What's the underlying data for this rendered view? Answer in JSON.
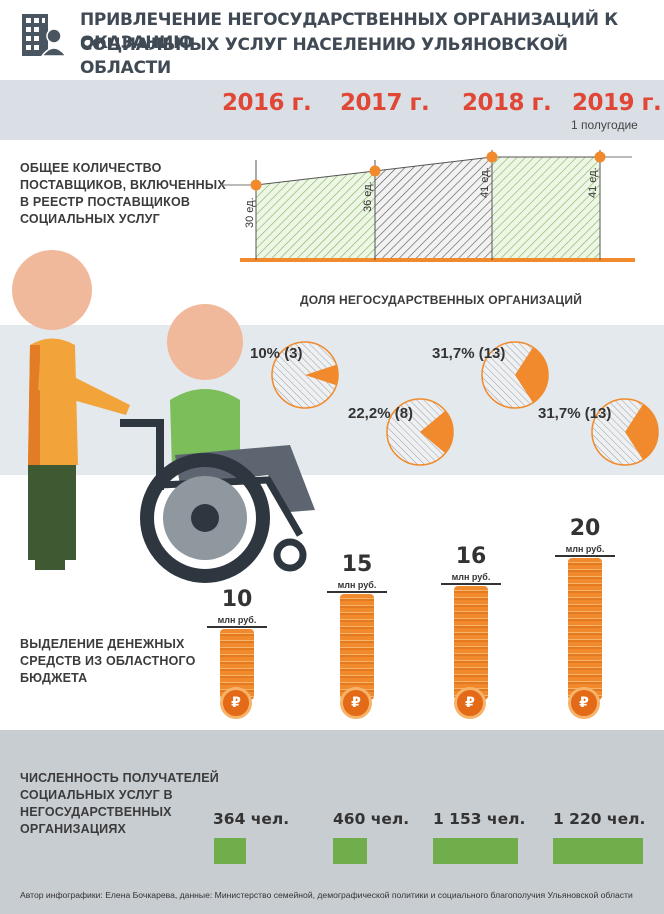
{
  "header": {
    "title_line1": "ПРИВЛЕЧЕНИЕ НЕГОСУДАРСТВЕННЫХ ОРГАНИЗАЦИЙ К ОКАЗАНИЮ",
    "title_line2": "СОЦИАЛЬНЫХ УСЛУГ НАСЕЛЕНИЮ УЛЬЯНОВСКОЙ ОБЛАСТИ",
    "icon": "office-building-person-icon"
  },
  "years": [
    {
      "label": "2016 г."
    },
    {
      "label": "2017 г."
    },
    {
      "label": "2018 г."
    },
    {
      "label": "2019 г.",
      "note": "1 полугодие"
    }
  ],
  "providers": {
    "label_lines": [
      "ОБЩЕЕ КОЛИЧЕСТВО",
      "ПОСТАВЩИКОВ, ВКЛЮЧЕННЫХ",
      "В РЕЕСТР ПОСТАВЩИКОВ",
      "СОЦИАЛЬНЫХ УСЛУГ"
    ],
    "values": [
      "30 ед.",
      "36 ед.",
      "41 ед.",
      "41 ед."
    ]
  },
  "share": {
    "title": "ДОЛЯ  НЕГОСУДАРСТВЕННЫХ ОРГАНИЗАЦИЙ",
    "items": [
      {
        "text": "10% (3)",
        "fraction": 0.1
      },
      {
        "text": "22,2% (8)",
        "fraction": 0.222
      },
      {
        "text": "31,7% (13)",
        "fraction": 0.317
      },
      {
        "text": "31,7% (13)",
        "fraction": 0.317
      }
    ]
  },
  "funding": {
    "label_lines": [
      "ВЫДЕЛЕНИЕ ДЕНЕЖНЫХ",
      "СРЕДСТВ ИЗ ОБЛАСТНОГО",
      "БЮДЖЕТА"
    ],
    "unit": "млн руб.",
    "values": [
      "10",
      "15",
      "16",
      "20"
    ],
    "amounts": [
      10,
      15,
      16,
      20
    ],
    "coin_symbol": "₽"
  },
  "recipients": {
    "label_lines": [
      "ЧИСЛЕННОСТЬ ПОЛУЧАТЕЛЕЙ",
      "СОЦИАЛЬНЫХ УСЛУГ В",
      "НЕГОСУДАРСТВЕННЫХ",
      "ОРГАНИЗАЦИЯХ"
    ],
    "values": [
      "364 чел.",
      "460 чел.",
      "1 153 чел.",
      "1 220 чел."
    ],
    "counts": [
      364,
      460,
      1153,
      1220
    ]
  },
  "footer": "Автор инфографики: Елена Бочкарева, данные: Министерство семейной, демографической политики и социального благополучия Ульяновской области",
  "colors": {
    "accent_red": "#e14737",
    "orange": "#f08a2c",
    "green": "#6fae4a",
    "title_grey": "#404a55"
  }
}
